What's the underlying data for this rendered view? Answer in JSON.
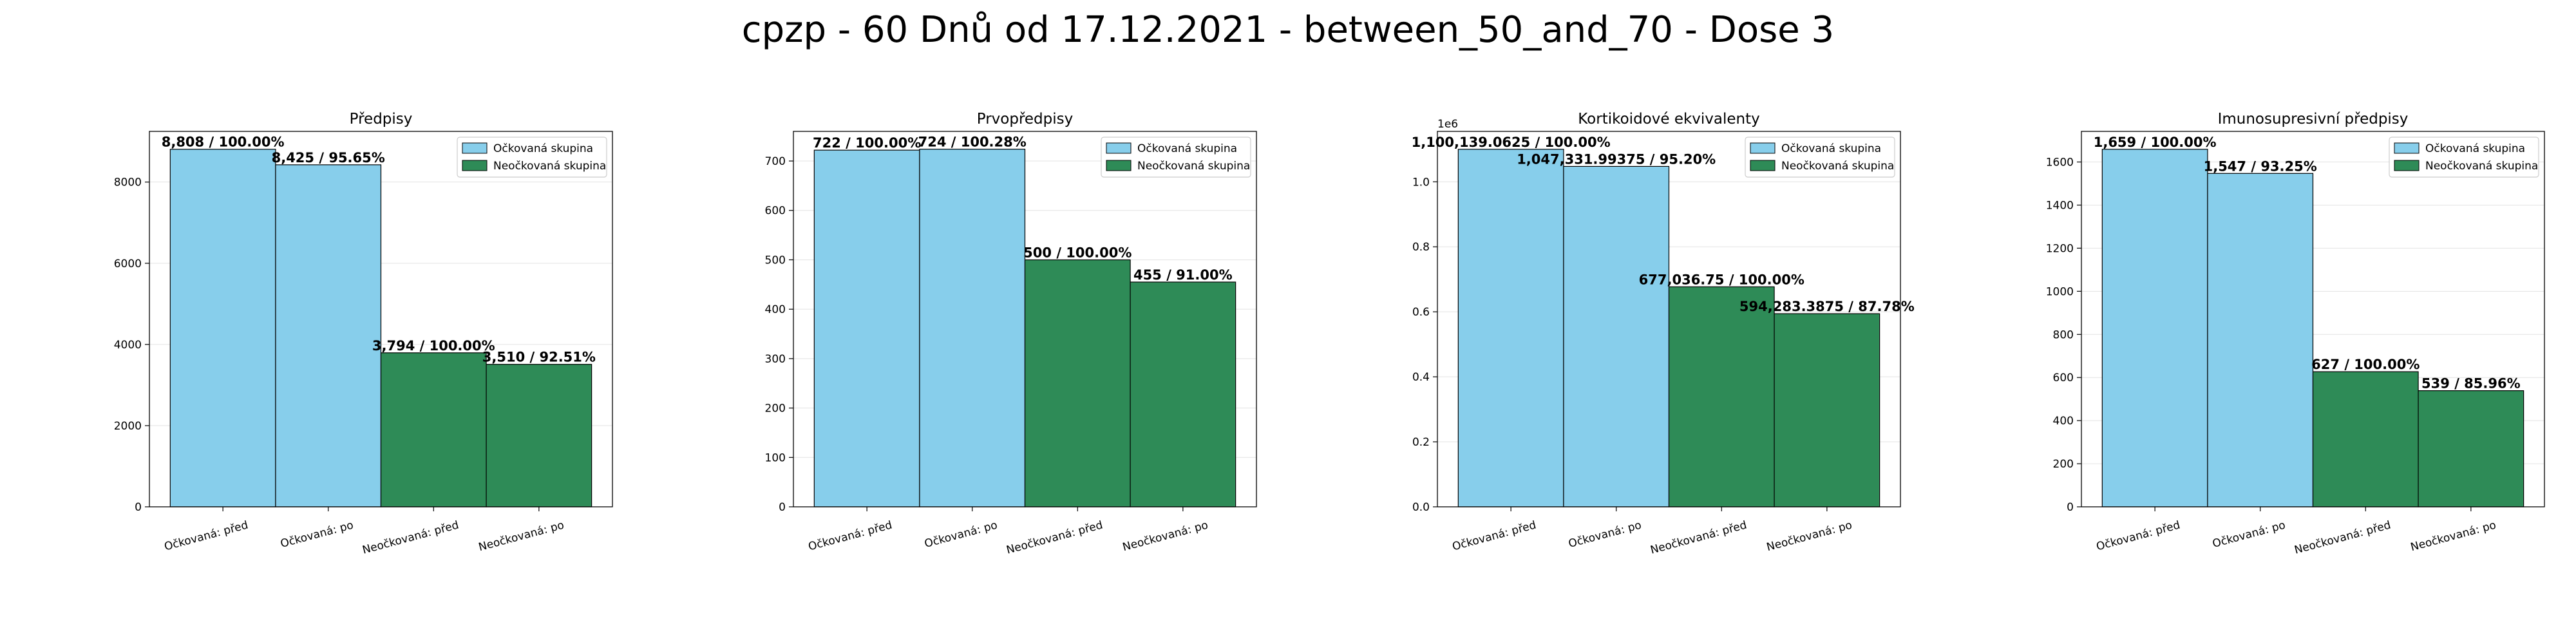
{
  "suptitle": "cpzp - 60 Dnů od 17.12.2021 - between_50_and_70 - Dose 3",
  "colors": {
    "vaccinated": "#87CEEB",
    "unvaccinated": "#2E8B57"
  },
  "chart_data": [
    {
      "type": "bar",
      "title": "Předpisy",
      "categories": [
        "Očkovaná: před",
        "Očkovaná: po",
        "Neočkovaná: před",
        "Neočkovaná: po"
      ],
      "values": [
        8808,
        8425,
        3794,
        3510
      ],
      "labels": [
        "8,808 / 100.00%",
        "8,425 / 95.65%",
        "3,794 / 100.00%",
        "3,510 / 92.51%"
      ],
      "group": [
        "vaccinated",
        "vaccinated",
        "unvaccinated",
        "unvaccinated"
      ],
      "yticks": [
        0,
        2000,
        4000,
        6000,
        8000
      ],
      "ytick_labels": [
        "0",
        "2000",
        "4000",
        "6000",
        "8000"
      ],
      "ylim": [
        0,
        9248
      ],
      "legend": [
        "Očkovaná skupina",
        "Neočkovaná skupina"
      ],
      "legend_position": "top-right",
      "grid": "y"
    },
    {
      "type": "bar",
      "title": "Prvopředpisy",
      "categories": [
        "Očkovaná: před",
        "Očkovaná: po",
        "Neočkovaná: před",
        "Neočkovaná: po"
      ],
      "values": [
        722,
        724,
        500,
        455
      ],
      "labels": [
        "722 / 100.00%",
        "724 / 100.28%",
        "500 / 100.00%",
        "455 / 91.00%"
      ],
      "group": [
        "vaccinated",
        "vaccinated",
        "unvaccinated",
        "unvaccinated"
      ],
      "yticks": [
        0,
        100,
        200,
        300,
        400,
        500,
        600,
        700
      ],
      "ytick_labels": [
        "0",
        "100",
        "200",
        "300",
        "400",
        "500",
        "600",
        "700"
      ],
      "ylim": [
        0,
        760
      ],
      "legend": [
        "Očkovaná skupina",
        "Neočkovaná skupina"
      ],
      "legend_position": "top-right",
      "grid": "y"
    },
    {
      "type": "bar",
      "title": "Kortikoidové ekvivalenty",
      "categories": [
        "Očkovaná: před",
        "Očkovaná: po",
        "Neočkovaná: před",
        "Neočkovaná: po"
      ],
      "values": [
        1100139.0625,
        1047331.99375,
        677036.75,
        594283.3875
      ],
      "labels": [
        "1,100,139.0625 / 100.00%",
        "1,047,331.99375 / 95.20%",
        "677,036.75 / 100.00%",
        "594,283.3875 / 87.78%"
      ],
      "group": [
        "vaccinated",
        "vaccinated",
        "unvaccinated",
        "unvaccinated"
      ],
      "yticks": [
        0,
        200000,
        400000,
        600000,
        800000,
        1000000
      ],
      "ytick_labels": [
        "0.0",
        "0.2",
        "0.4",
        "0.6",
        "0.8",
        "1.0"
      ],
      "y_offset_text": "1e6",
      "ylim": [
        0,
        1155146
      ],
      "legend": [
        "Očkovaná skupina",
        "Neočkovaná skupina"
      ],
      "legend_position": "top-right",
      "grid": "y"
    },
    {
      "type": "bar",
      "title": "Imunosupresivní předpisy",
      "categories": [
        "Očkovaná: před",
        "Očkovaná: po",
        "Neočkovaná: před",
        "Neočkovaná: po"
      ],
      "values": [
        1659,
        1547,
        627,
        539
      ],
      "labels": [
        "1,659 / 100.00%",
        "1,547 / 93.25%",
        "627 / 100.00%",
        "539 / 85.96%"
      ],
      "group": [
        "vaccinated",
        "vaccinated",
        "unvaccinated",
        "unvaccinated"
      ],
      "yticks": [
        0,
        200,
        400,
        600,
        800,
        1000,
        1200,
        1400,
        1600
      ],
      "ytick_labels": [
        "0",
        "200",
        "400",
        "600",
        "800",
        "1000",
        "1200",
        "1400",
        "1600"
      ],
      "ylim": [
        0,
        1742
      ],
      "legend": [
        "Očkovaná skupina",
        "Neočkovaná skupina"
      ],
      "legend_position": "top-right",
      "grid": "y"
    }
  ]
}
